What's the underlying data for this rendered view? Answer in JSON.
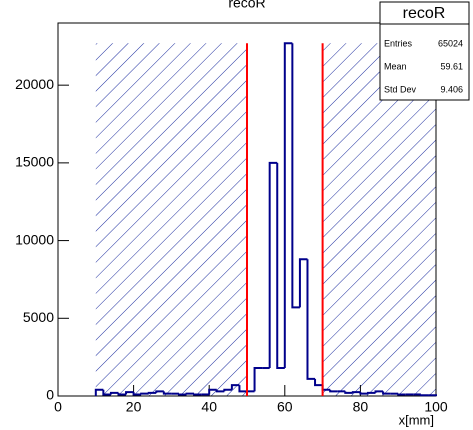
{
  "chart_data": {
    "type": "histogram",
    "title": "recoR",
    "xlabel": "x[mm]",
    "bins": [
      10,
      12,
      14,
      16,
      18,
      20,
      22,
      24,
      26,
      28,
      30,
      32,
      34,
      36,
      38,
      40,
      42,
      44,
      46,
      48,
      50,
      52,
      54,
      56,
      58,
      60,
      62,
      64,
      66,
      68,
      70,
      72,
      74,
      76,
      78,
      80,
      82,
      84,
      86,
      88,
      90,
      92,
      94,
      96,
      98,
      100
    ],
    "counts": [
      400,
      100,
      200,
      100,
      250,
      100,
      150,
      200,
      300,
      150,
      150,
      100,
      150,
      100,
      100,
      400,
      300,
      400,
      700,
      300,
      300,
      1800,
      1800,
      15000,
      1800,
      22700,
      5700,
      8800,
      1100,
      700,
      400,
      300,
      300,
      200,
      250,
      150,
      200,
      300,
      150,
      150,
      100,
      100,
      100,
      50,
      50
    ],
    "color": "#00008b",
    "cut_color": "#ff0000",
    "hatch_color": "#1e2fa0",
    "excluded_ranges": [
      [
        10,
        50
      ],
      [
        70,
        100
      ]
    ],
    "cut_lines": [
      50,
      70
    ],
    "xlim": [
      0,
      100
    ],
    "xticks": [
      0,
      20,
      40,
      60,
      80,
      100
    ],
    "ylim": [
      0,
      24000
    ],
    "yticks": [
      0,
      5000,
      10000,
      15000,
      20000
    ],
    "stats": [
      {
        "label": "Entries",
        "value": 65024
      },
      {
        "label": "Mean",
        "value": 59.61
      },
      {
        "label": "Std Dev",
        "value": 9.406
      }
    ]
  }
}
